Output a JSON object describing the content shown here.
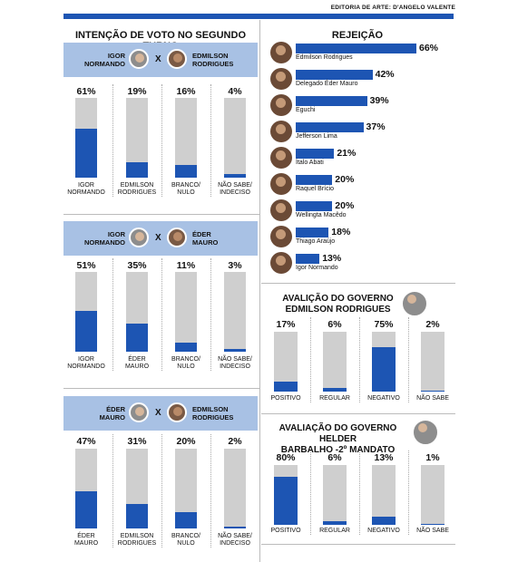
{
  "credit": "EDITORIA DE ARTE: D'ANGELO VALENTE",
  "colors": {
    "accent": "#1d55b3",
    "band": "#a8c1e4",
    "track": "#cfcfcf"
  },
  "left_section_title": "INTENÇÃO DE VOTO NO SEGUNDO TURNO",
  "chart_data": [
    {
      "type": "bar",
      "title": "",
      "matchup": {
        "left": "IGOR\nNORMANDO",
        "right": "EDMILSON\nRODRIGUES",
        "vs": "X"
      },
      "categories": [
        "IGOR\nNORMANDO",
        "EDMILSON\nRODRIGUES",
        "BRANCO/\nNULO",
        "NÃO SABE/\nINDECISO"
      ],
      "values": [
        61,
        19,
        16,
        4
      ],
      "labels": [
        "61%",
        "19%",
        "16%",
        "4%"
      ],
      "ylim": [
        0,
        100
      ]
    },
    {
      "type": "bar",
      "title": "",
      "matchup": {
        "left": "IGOR\nNORMANDO",
        "right": "ÉDER\nMAURO",
        "vs": "X"
      },
      "categories": [
        "IGOR\nNORMANDO",
        "ÉDER\nMAURO",
        "BRANCO/\nNULO",
        "NÃO SABE/\nINDECISO"
      ],
      "values": [
        51,
        35,
        11,
        3
      ],
      "labels": [
        "51%",
        "35%",
        "11%",
        "3%"
      ],
      "ylim": [
        0,
        100
      ]
    },
    {
      "type": "bar",
      "title": "",
      "matchup": {
        "left": "ÉDER\nMAURO",
        "right": "EDMILSON\nRODRIGUES",
        "vs": "X"
      },
      "categories": [
        "ÉDER\nMAURO",
        "EDMILSON\nRODRIGUES",
        "BRANCO/\nNULO",
        "NÃO SABE/\nINDECISO"
      ],
      "values": [
        47,
        31,
        20,
        2
      ],
      "labels": [
        "47%",
        "31%",
        "20%",
        "2%"
      ],
      "ylim": [
        0,
        100
      ]
    },
    {
      "type": "bar",
      "title": "REJEIÇÃO",
      "orientation": "horizontal",
      "categories": [
        "Edmilson Rodrigues",
        "Delegado Éder Mauro",
        "Eguchi",
        "Jefferson Lima",
        "Ítalo Abati",
        "Raquel Brício",
        "Wellingta Macêdo",
        "Thiago Araújo",
        "Igor Normando"
      ],
      "values": [
        66,
        42,
        39,
        37,
        21,
        20,
        20,
        18,
        13
      ],
      "labels": [
        "66%",
        "42%",
        "39%",
        "37%",
        "21%",
        "20%",
        "20%",
        "18%",
        "13%"
      ],
      "ylim": [
        0,
        66
      ]
    },
    {
      "type": "bar",
      "title": "AVALIÇÃO DO GOVERNO\nEDMILSON RODRIGUES",
      "categories": [
        "POSITIVO",
        "REGULAR",
        "NEGATIVO",
        "NÃO SABE"
      ],
      "values": [
        17,
        6,
        75,
        2
      ],
      "labels": [
        "17%",
        "6%",
        "75%",
        "2%"
      ],
      "ylim": [
        0,
        100
      ]
    },
    {
      "type": "bar",
      "title": "AVALIAÇÃO DO GOVERNO HELDER\nBARBALHO -2º MANDATO",
      "categories": [
        "POSITIVO",
        "REGULAR",
        "NEGATIVO",
        "NÃO SABE"
      ],
      "values": [
        80,
        6,
        13,
        1
      ],
      "labels": [
        "80%",
        "6%",
        "13%",
        "1%"
      ],
      "ylim": [
        0,
        100
      ]
    }
  ]
}
